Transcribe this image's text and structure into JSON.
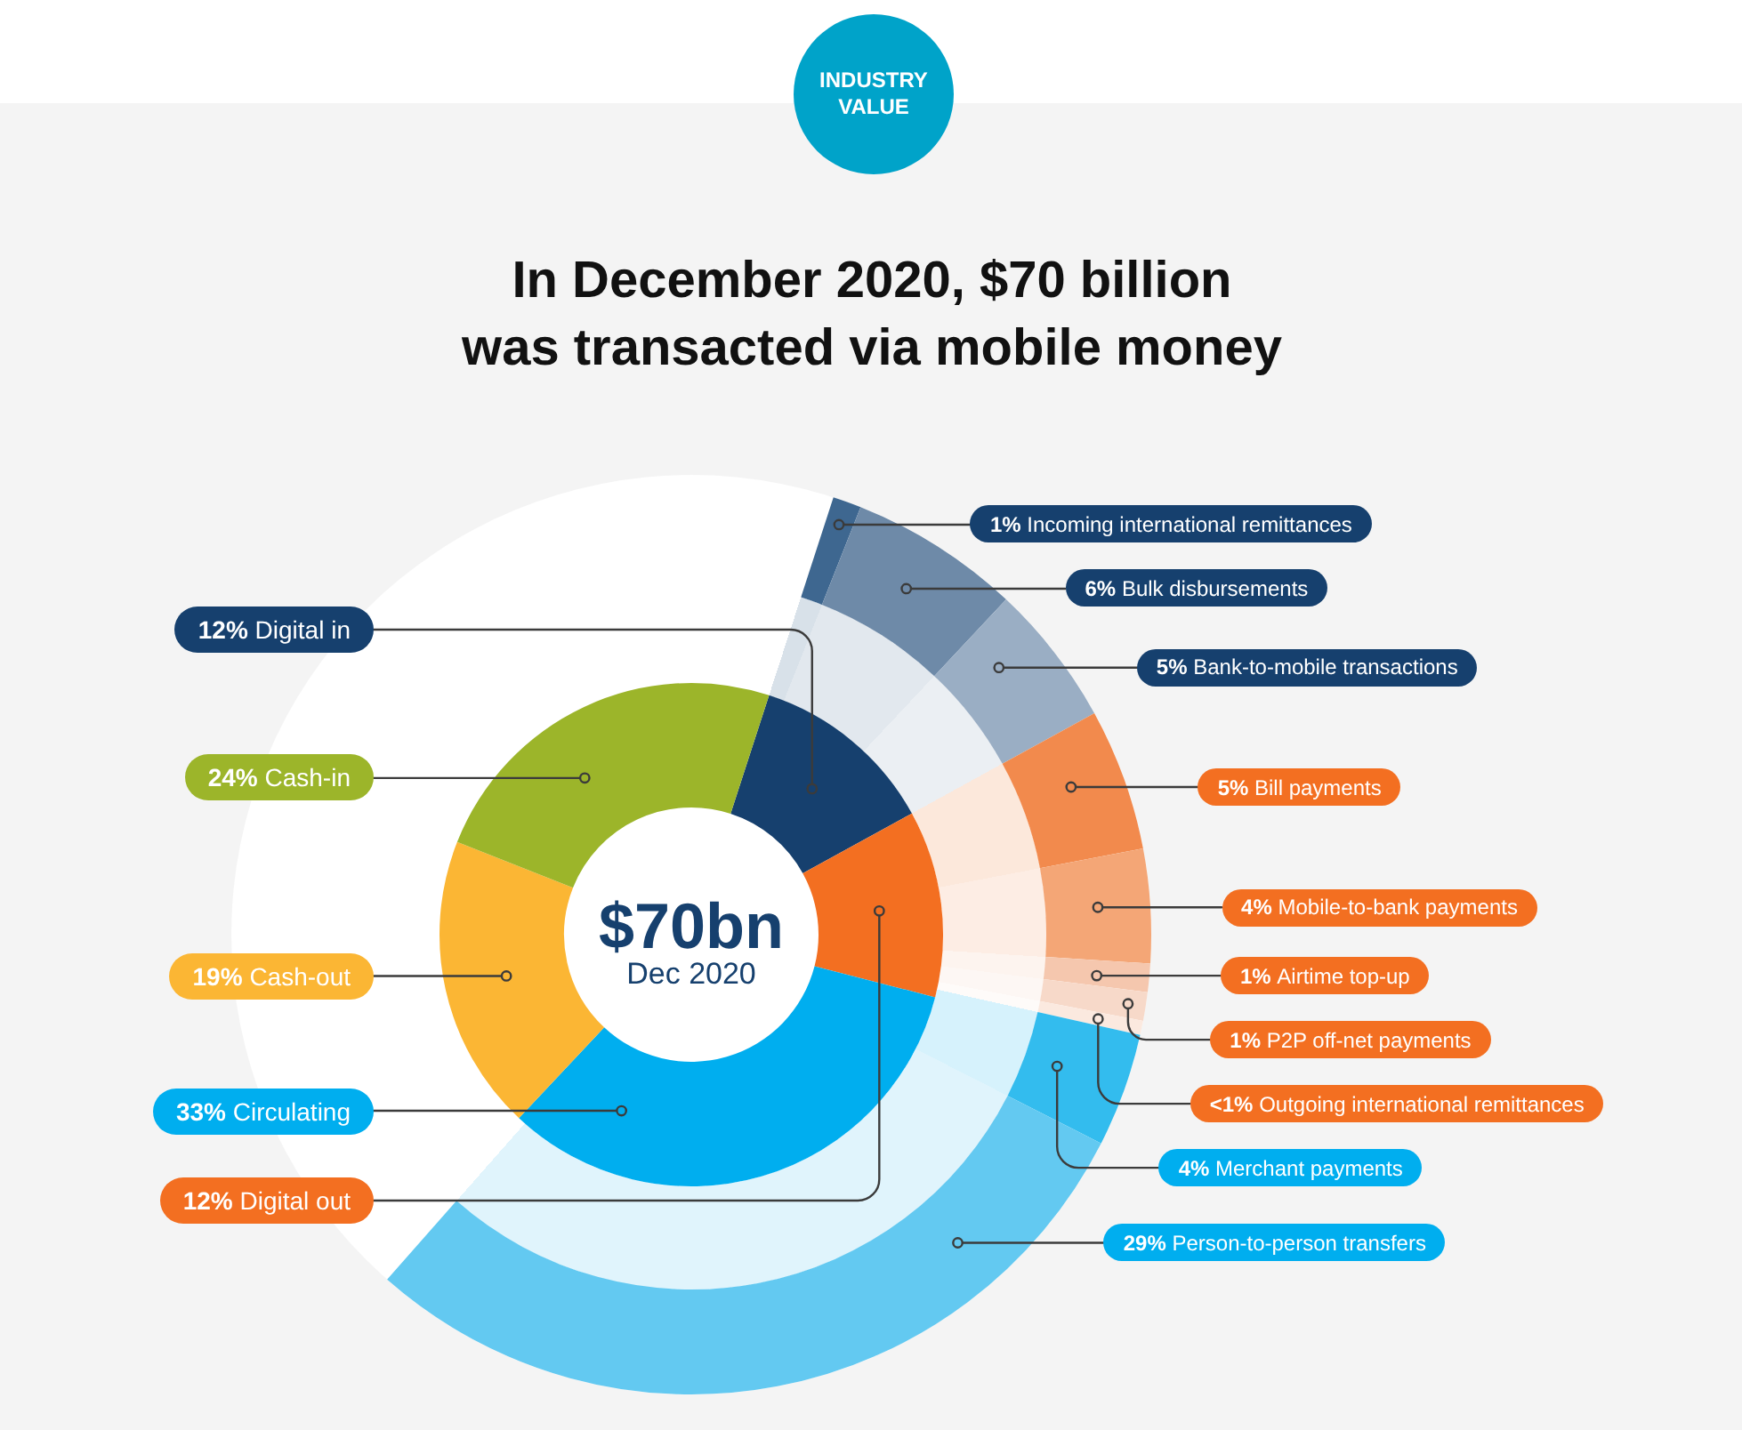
{
  "chart_data": [
    {
      "type": "donut",
      "title": "In December 2020, $70 billion was transacted via mobile money",
      "subtitle": "INDUSTRY VALUE",
      "annotations": [
        "$70bn",
        "Dec 2020"
      ],
      "categories": [
        "Digital in",
        "Digital out",
        "Circulating",
        "Cash-out",
        "Cash-in"
      ],
      "values": [
        12,
        12,
        33,
        19,
        24
      ],
      "value_labels": [
        "12%",
        "12%",
        "33%",
        "19%",
        "24%"
      ],
      "colors": [
        "#16406e",
        "#f36f21",
        "#00aeef",
        "#fbb634",
        "#9cb52a"
      ]
    },
    {
      "type": "donut",
      "categories": [
        "Incoming international remittances",
        "Bulk disbursements",
        "Bank-to-mobile transactions",
        "Bill payments",
        "Mobile-to-bank payments",
        "Airtime top-up",
        "P2P off-net payments",
        "Outgoing international remittances",
        "Merchant payments",
        "Person-to-person transfers"
      ],
      "values": [
        1,
        6,
        5,
        5,
        4,
        1,
        1,
        0.5,
        4,
        29
      ],
      "value_labels": [
        "1%",
        "6%",
        "5%",
        "5%",
        "4%",
        "1%",
        "1%",
        "<1%",
        "4%",
        "29%"
      ],
      "colors": [
        "#3e6790",
        "#6e8aa8",
        "#9aaec4",
        "#f28a4d",
        "#f4a676",
        "#f5c7ae",
        "#f7d9c9",
        "#fbe9df",
        "#33bcee",
        "#63c9f1"
      ]
    }
  ]
}
